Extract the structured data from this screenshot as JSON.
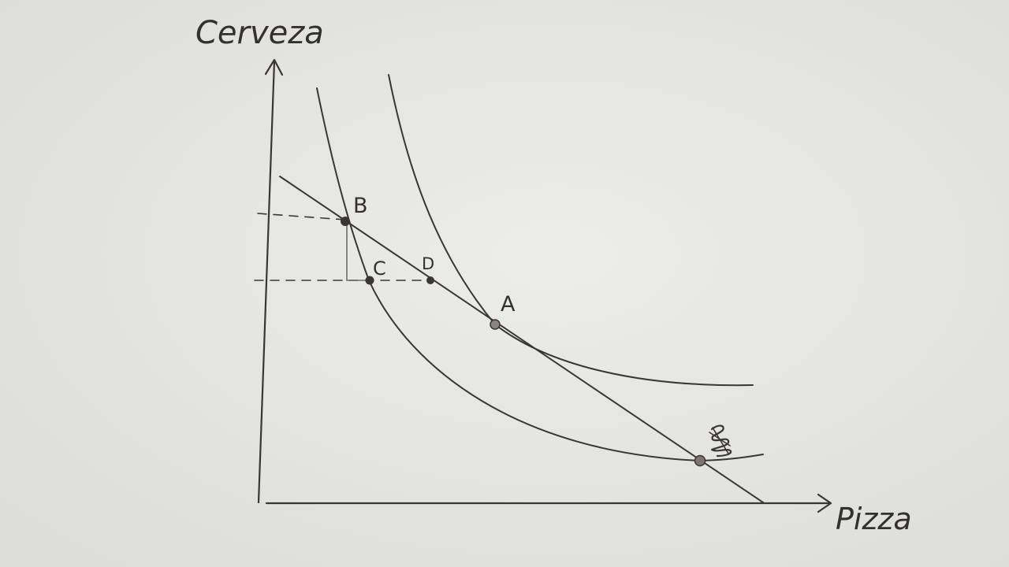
{
  "diagram": {
    "axes": {
      "y_label": "Cerveza",
      "x_label": "Pizza"
    },
    "points": [
      {
        "id": "A",
        "label": "A"
      },
      {
        "id": "B",
        "label": "B"
      },
      {
        "id": "C",
        "label": "C"
      },
      {
        "id": "D",
        "label": "D"
      },
      {
        "id": "E",
        "label": ""
      }
    ],
    "curves": [
      {
        "id": "upper-indifference-curve",
        "through": [
          "A"
        ]
      },
      {
        "id": "lower-indifference-curve",
        "through": [
          "B",
          "C",
          "E"
        ]
      },
      {
        "id": "budget-line",
        "through": [
          "B",
          "D",
          "A",
          "E"
        ]
      }
    ],
    "colors": {
      "paper": "#e8e8e6",
      "ink": "#3a3634"
    }
  }
}
